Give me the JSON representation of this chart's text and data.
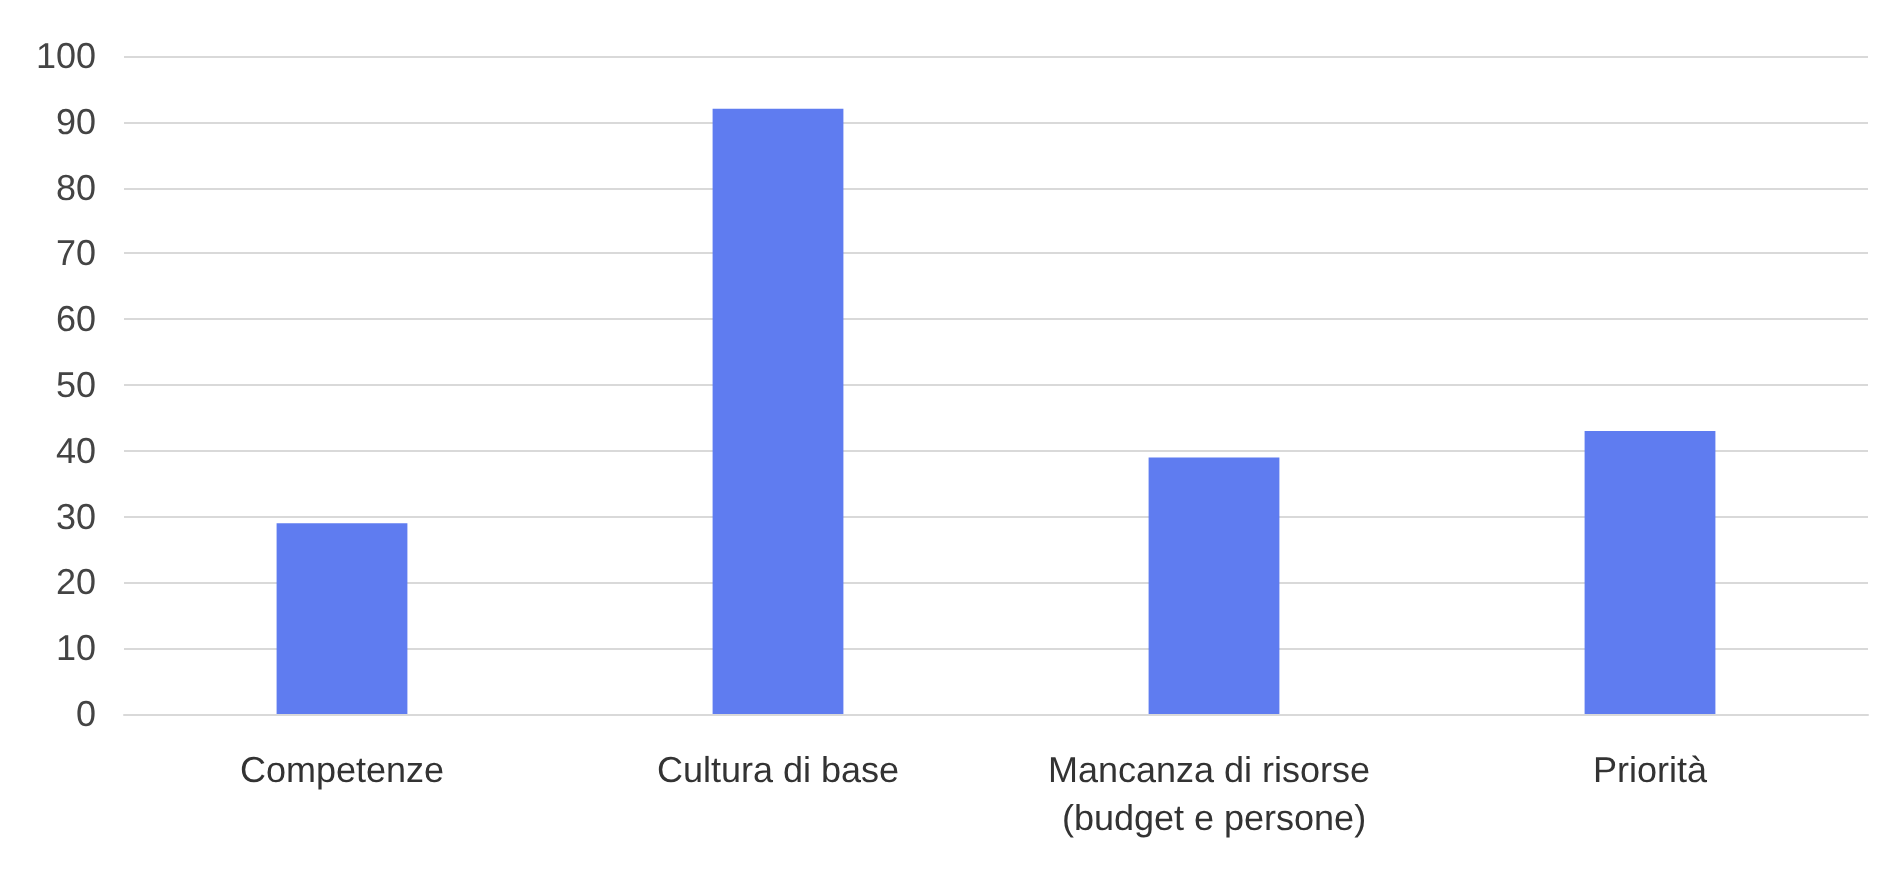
{
  "chart_data": {
    "type": "bar",
    "categories": [
      "Competenze",
      "Cultura di base",
      "Mancanza di risorse (budget e persone)",
      "Priorità"
    ],
    "values": [
      29,
      92,
      39,
      43
    ],
    "color": "#5f7cf0",
    "ylim": [
      0,
      100
    ],
    "yticks": [
      0,
      10,
      20,
      30,
      40,
      50,
      60,
      70,
      80,
      90,
      100
    ],
    "grid": "y"
  }
}
